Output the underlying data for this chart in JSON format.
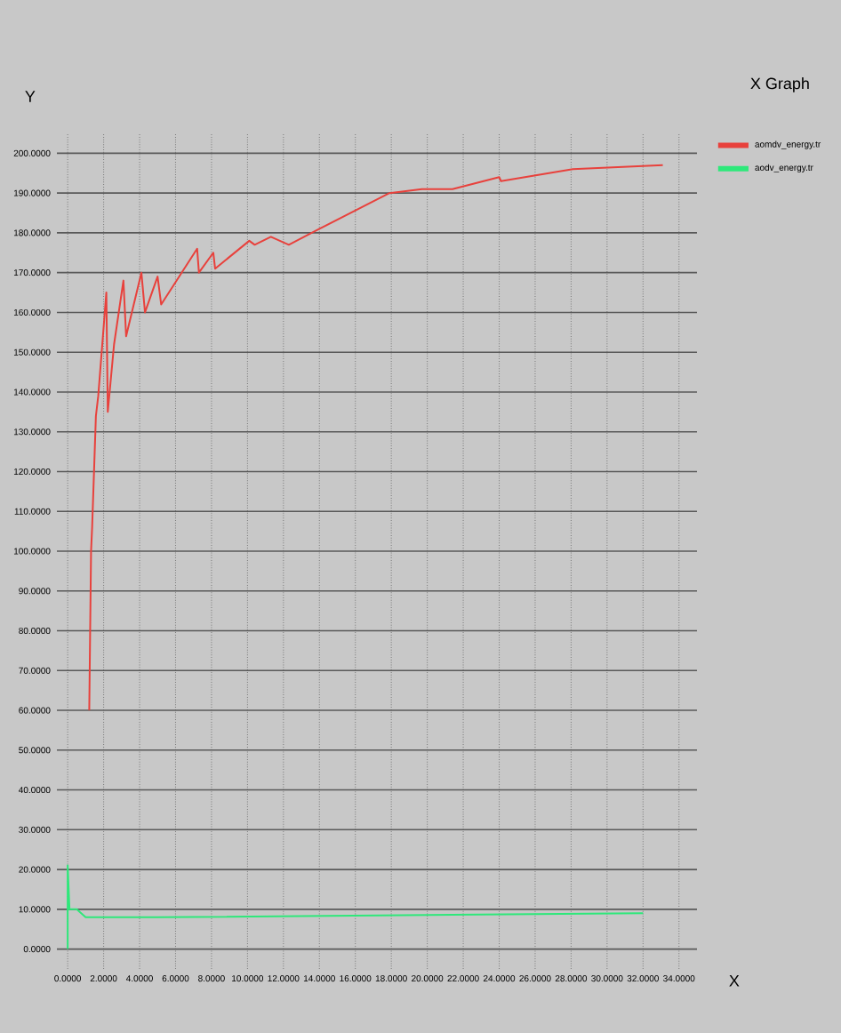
{
  "chart_data": {
    "type": "line",
    "title": "X Graph",
    "xlabel": "X",
    "ylabel": "Y",
    "xlim": [
      -0.6,
      35
    ],
    "ylim": [
      -5,
      205
    ],
    "xticks": [
      {
        "value": 0,
        "label": "0.0000"
      },
      {
        "value": 2,
        "label": "2.0000"
      },
      {
        "value": 4,
        "label": "4.0000"
      },
      {
        "value": 6,
        "label": "6.0000"
      },
      {
        "value": 8,
        "label": "8.0000"
      },
      {
        "value": 10,
        "label": "10.0000"
      },
      {
        "value": 12,
        "label": "12.0000"
      },
      {
        "value": 14,
        "label": "14.0000"
      },
      {
        "value": 16,
        "label": "16.0000"
      },
      {
        "value": 18,
        "label": "18.0000"
      },
      {
        "value": 20,
        "label": "20.0000"
      },
      {
        "value": 22,
        "label": "22.0000"
      },
      {
        "value": 24,
        "label": "24.0000"
      },
      {
        "value": 26,
        "label": "26.0000"
      },
      {
        "value": 28,
        "label": "28.0000"
      },
      {
        "value": 30,
        "label": "30.0000"
      },
      {
        "value": 32,
        "label": "32.0000"
      },
      {
        "value": 34,
        "label": "34.0000"
      }
    ],
    "yticks": [
      {
        "value": 0,
        "label": "0.0000"
      },
      {
        "value": 10,
        "label": "10.0000"
      },
      {
        "value": 20,
        "label": "20.0000"
      },
      {
        "value": 30,
        "label": "30.0000"
      },
      {
        "value": 40,
        "label": "40.0000"
      },
      {
        "value": 50,
        "label": "50.0000"
      },
      {
        "value": 60,
        "label": "60.0000"
      },
      {
        "value": 70,
        "label": "70.0000"
      },
      {
        "value": 80,
        "label": "80.0000"
      },
      {
        "value": 90,
        "label": "90.0000"
      },
      {
        "value": 100,
        "label": "100.0000"
      },
      {
        "value": 110,
        "label": "110.0000"
      },
      {
        "value": 120,
        "label": "120.0000"
      },
      {
        "value": 130,
        "label": "130.0000"
      },
      {
        "value": 140,
        "label": "140.0000"
      },
      {
        "value": 150,
        "label": "150.0000"
      },
      {
        "value": 160,
        "label": "160.0000"
      },
      {
        "value": 170,
        "label": "170.0000"
      },
      {
        "value": 180,
        "label": "180.0000"
      },
      {
        "value": 190,
        "label": "190.0000"
      },
      {
        "value": 200,
        "label": "200.0000"
      }
    ],
    "grid": true,
    "legend": "top right",
    "marker": "none",
    "line_style": "solid",
    "series": [
      {
        "name": "aomdv_energy.tr",
        "color": "#e8413c",
        "x": [
          1.2,
          1.3,
          1.36,
          1.57,
          1.7,
          2.15,
          2.23,
          2.58,
          3.1,
          3.25,
          4.1,
          4.3,
          5.0,
          5.2,
          7.2,
          7.3,
          8.1,
          8.2,
          10.1,
          10.4,
          11.3,
          12.3,
          14.0,
          17.9,
          19.7,
          21.4,
          24.0,
          24.1,
          28.1,
          33.1
        ],
        "values": [
          60,
          100,
          106,
          134,
          139,
          165,
          135,
          152,
          168,
          154,
          170,
          160,
          169,
          162,
          176,
          170,
          175,
          171,
          178,
          177,
          179,
          177,
          181,
          190,
          191,
          191,
          194,
          193,
          196,
          197
        ]
      },
      {
        "name": "aodv_energy.tr",
        "color": "#2ee87a",
        "x": [
          0,
          0,
          0.1,
          0.5,
          1,
          5,
          32
        ],
        "values": [
          0,
          21,
          10,
          10,
          8,
          8,
          9
        ]
      }
    ]
  }
}
